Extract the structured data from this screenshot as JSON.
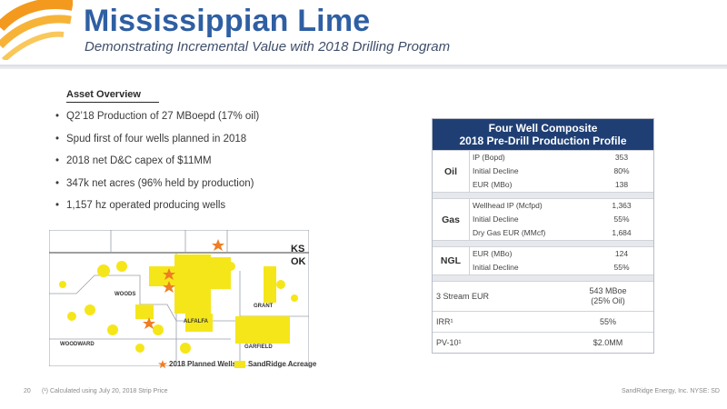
{
  "header": {
    "title": "Mississippian Lime",
    "subtitle": "Demonstrating Incremental Value with 2018 Drilling Program"
  },
  "overview": {
    "title": "Asset Overview",
    "bullets": [
      "Q2’18 Production of 27 MBoepd (17% oil)",
      "Spud first of four wells planned in 2018",
      "2018 net D&C capex of $11MM",
      "347k net acres (96% held by production)",
      "1,157 hz operated producing wells"
    ]
  },
  "map": {
    "state_labels": [
      "KS",
      "OK"
    ],
    "county_labels": [
      "WOODS",
      "ALFALFA",
      "GRANT",
      "WOODWARD",
      "GARFIELD"
    ],
    "legend": {
      "planned_wells": "2018 Planned Wells",
      "acreage": "SandRidge Acreage"
    },
    "colors": {
      "acreage": "#f5e61a",
      "wells": "#ef7d22",
      "border": "#9aa0a8"
    }
  },
  "table": {
    "title_line1": "Four Well Composite",
    "title_line2": "2018 Pre-Drill Production Profile",
    "groups": [
      {
        "label": "Oil",
        "items": [
          {
            "k": "IP (Bopd)",
            "v": "353"
          },
          {
            "k": "Initial Decline",
            "v": "80%"
          },
          {
            "k": "EUR (MBo)",
            "v": "138"
          }
        ]
      },
      {
        "label": "Gas",
        "items": [
          {
            "k": "Wellhead IP (Mcfpd)",
            "v": "1,363"
          },
          {
            "k": "Initial Decline",
            "v": "55%"
          },
          {
            "k": "Dry Gas EUR (MMcf)",
            "v": "1,684"
          }
        ]
      },
      {
        "label": "NGL",
        "items": [
          {
            "k": "EUR (MBo)",
            "v": "124"
          },
          {
            "k": "Initial Decline",
            "v": "55%"
          }
        ]
      }
    ],
    "summary": [
      {
        "k": "3 Stream EUR",
        "v": "543 MBoe\n(25% Oil)"
      },
      {
        "k": "IRR¹",
        "v": "55%"
      },
      {
        "k": "PV-10¹",
        "v": "$2.0MM"
      }
    ],
    "colors": {
      "header": "#1f3f74"
    }
  },
  "footer": {
    "page": "20",
    "note": "(¹) Calculated using July 20, 2018 Strip Price",
    "company": "SandRidge Energy, Inc. NYSE: SD"
  }
}
